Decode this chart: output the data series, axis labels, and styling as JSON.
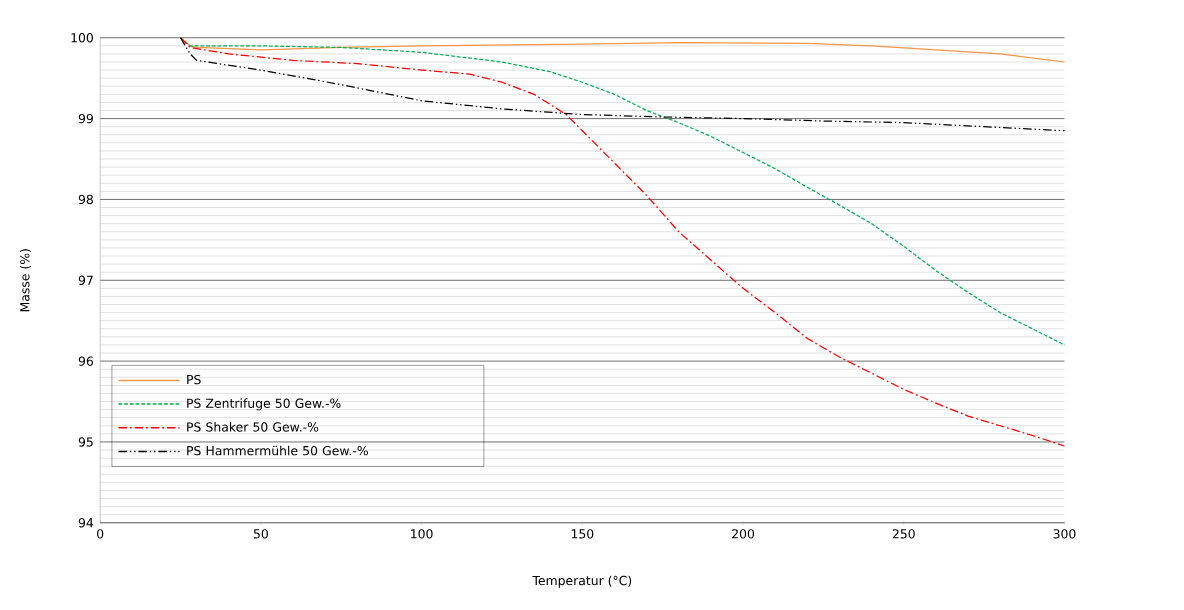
{
  "chart_data": {
    "type": "line",
    "xlabel": "Temperatur (°C)",
    "ylabel": "Masse (%)",
    "xlim": [
      0,
      300
    ],
    "xticks": [
      0,
      50,
      100,
      150,
      200,
      250,
      300
    ],
    "ylim": [
      94,
      100
    ],
    "yticks": [
      94,
      {
        "value": 94.1,
        "label": null
      },
      {
        "value": 94.2,
        "label": null
      },
      {
        "value": 94.3,
        "label": null
      },
      {
        "value": 94.4,
        "label": null
      },
      {
        "value": 94.5,
        "label": null
      },
      {
        "value": 94.6,
        "label": null
      },
      {
        "value": 94.7,
        "label": null
      },
      {
        "value": 94.8,
        "label": null
      },
      {
        "value": 94.9,
        "label": null
      },
      95,
      {
        "value": 95.1,
        "label": null
      },
      {
        "value": 95.2,
        "label": null
      },
      {
        "value": 95.3,
        "label": null
      },
      {
        "value": 95.4,
        "label": null
      },
      {
        "value": 95.5,
        "label": null
      },
      {
        "value": 95.6,
        "label": null
      },
      {
        "value": 95.7,
        "label": null
      },
      {
        "value": 95.8,
        "label": null
      },
      {
        "value": 95.9,
        "label": null
      },
      96,
      {
        "value": 96.1,
        "label": null
      },
      {
        "value": 96.2,
        "label": null
      },
      {
        "value": 96.3,
        "label": null
      },
      {
        "value": 96.4,
        "label": null
      },
      {
        "value": 96.5,
        "label": null
      },
      {
        "value": 96.6,
        "label": null
      },
      {
        "value": 96.7,
        "label": null
      },
      {
        "value": 96.8,
        "label": null
      },
      {
        "value": 96.9,
        "label": null
      },
      97,
      {
        "value": 97.1,
        "label": null
      },
      {
        "value": 97.2,
        "label": null
      },
      {
        "value": 97.3,
        "label": null
      },
      {
        "value": 97.4,
        "label": null
      },
      {
        "value": 97.5,
        "label": null
      },
      {
        "value": 97.6,
        "label": null
      },
      {
        "value": 97.7,
        "label": null
      },
      {
        "value": 97.8,
        "label": null
      },
      {
        "value": 97.9,
        "label": null
      },
      98,
      {
        "value": 98.1,
        "label": null
      },
      {
        "value": 98.2,
        "label": null
      },
      {
        "value": 98.3,
        "label": null
      },
      {
        "value": 98.4,
        "label": null
      },
      {
        "value": 98.5,
        "label": null
      },
      {
        "value": 98.6,
        "label": null
      },
      {
        "value": 98.7,
        "label": null
      },
      {
        "value": 98.8,
        "label": null
      },
      {
        "value": 98.9,
        "label": null
      },
      99,
      {
        "value": 99.1,
        "label": null
      },
      {
        "value": 99.2,
        "label": null
      },
      {
        "value": 99.3,
        "label": null
      },
      {
        "value": 99.4,
        "label": null
      },
      {
        "value": 99.5,
        "label": null
      },
      {
        "value": 99.6,
        "label": null
      },
      {
        "value": 99.7,
        "label": null
      },
      {
        "value": 99.8,
        "label": null
      },
      {
        "value": 99.9,
        "label": null
      },
      100
    ],
    "grid": "y",
    "legend": "bottom left",
    "marker": "none",
    "series": [
      {
        "name": "PS",
        "color": "#f79646",
        "line_style": "solid",
        "x": [
          25,
          28,
          30,
          50,
          75,
          100,
          150,
          180,
          220,
          240,
          260,
          280,
          300
        ],
        "values": [
          100,
          99.9,
          99.88,
          99.85,
          99.88,
          99.9,
          99.92,
          99.94,
          99.93,
          99.9,
          99.85,
          99.8,
          99.7
        ]
      },
      {
        "name": "PS Zentrifuge 50 Gew.-%",
        "color": "#00b050",
        "line_style": "dashed",
        "x": [
          25,
          28,
          50,
          75,
          100,
          125,
          140,
          150,
          160,
          170,
          180,
          190,
          200,
          210,
          220,
          230,
          240,
          250,
          260,
          270,
          280,
          290,
          300
        ],
        "values": [
          100,
          99.9,
          99.9,
          99.88,
          99.82,
          99.7,
          99.58,
          99.45,
          99.3,
          99.1,
          98.95,
          98.78,
          98.58,
          98.38,
          98.15,
          97.93,
          97.7,
          97.42,
          97.12,
          96.85,
          96.6,
          96.4,
          96.2
        ]
      },
      {
        "name": "PS Shaker 50 Gew.-%",
        "color": "#ff0000",
        "line_style": "dashdot",
        "x": [
          25,
          28,
          40,
          60,
          80,
          100,
          115,
          125,
          135,
          145,
          150,
          160,
          170,
          180,
          190,
          200,
          210,
          220,
          230,
          240,
          250,
          260,
          270,
          280,
          290,
          300
        ],
        "values": [
          100,
          99.88,
          99.8,
          99.72,
          99.68,
          99.6,
          99.55,
          99.45,
          99.3,
          99.05,
          98.85,
          98.45,
          98.05,
          97.6,
          97.25,
          96.9,
          96.6,
          96.28,
          96.05,
          95.85,
          95.65,
          95.48,
          95.32,
          95.2,
          95.08,
          94.95
        ]
      },
      {
        "name": "PS Hammermühle 50 Gew.-%",
        "color": "#000000",
        "line_style": "dashdotdot",
        "x": [
          25,
          28,
          30,
          50,
          75,
          100,
          125,
          150,
          175,
          200,
          225,
          250,
          275,
          300
        ],
        "values": [
          100,
          99.8,
          99.72,
          99.6,
          99.42,
          99.22,
          99.12,
          99.05,
          99.02,
          99.0,
          98.97,
          98.95,
          98.9,
          98.85
        ]
      }
    ]
  }
}
